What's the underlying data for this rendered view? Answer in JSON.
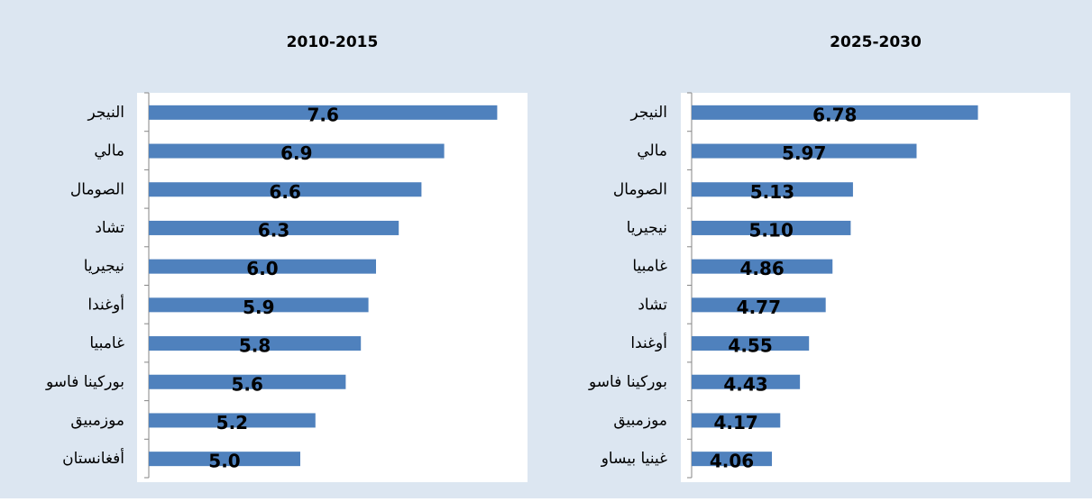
{
  "chart_data": [
    {
      "type": "bar",
      "orientation": "horizontal",
      "title": "2010-2015",
      "categories": [
        "النيجر",
        "مالي",
        "الصومال",
        "تشاد",
        "نيجيريا",
        "أوغندا",
        "غامبيا",
        "بوركينا فاسو",
        "موزمبيق",
        "أفغانستان"
      ],
      "values": [
        7.6,
        6.9,
        6.6,
        6.3,
        6.0,
        5.9,
        5.8,
        5.6,
        5.2,
        5.0
      ],
      "value_labels": [
        "7.6",
        "6.9",
        "6.6",
        "6.3",
        "6.0",
        "5.9",
        "5.8",
        "5.6",
        "5.2",
        "5.0"
      ],
      "color": "#4f81bd",
      "xlim": [
        3,
        8
      ]
    },
    {
      "type": "bar",
      "orientation": "horizontal",
      "title": "2025-2030",
      "categories": [
        "النيجر",
        "مالي",
        "الصومال",
        "نيجيريا",
        "غامبيا",
        "تشاد",
        "أوغندا",
        "بوركينا فاسو",
        "موزمبيق",
        "غينيا بيساو"
      ],
      "values": [
        6.78,
        5.97,
        5.13,
        5.1,
        4.86,
        4.77,
        4.55,
        4.43,
        4.17,
        4.06
      ],
      "value_labels": [
        "6.78",
        "5.97",
        "5.13",
        "5.10",
        "4.86",
        "4.77",
        "4.55",
        "4.43",
        "4.17",
        "4.06"
      ],
      "color": "#4f81bd",
      "xlim": [
        3,
        8
      ]
    }
  ]
}
